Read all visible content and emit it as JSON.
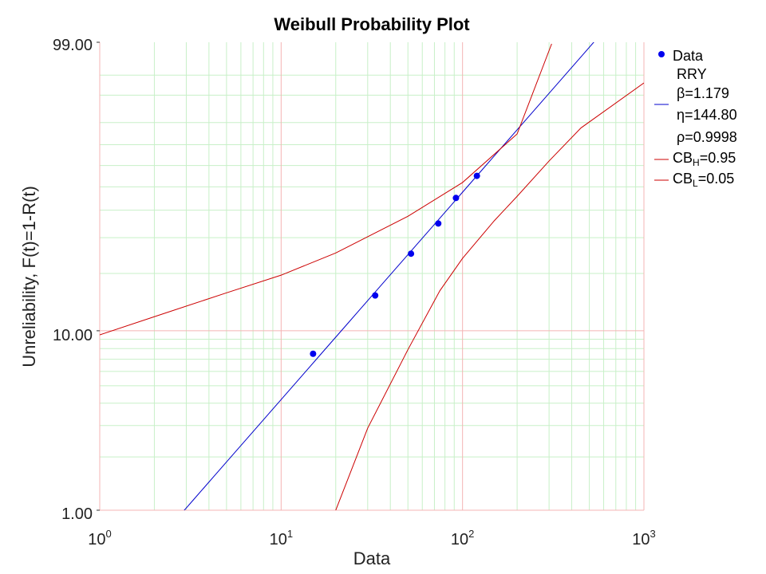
{
  "chart_data": {
    "type": "scatter",
    "title": "Weibull Probability Plot",
    "xlabel": "Data",
    "ylabel": "Unreliability, F(t)=1-R(t)",
    "x_scale": "log",
    "y_scale": "weibull",
    "xlim": [
      1,
      1000
    ],
    "ylim": [
      1,
      99
    ],
    "x_ticks": [
      {
        "base": "10",
        "exp": "0"
      },
      {
        "base": "10",
        "exp": "1"
      },
      {
        "base": "10",
        "exp": "2"
      },
      {
        "base": "10",
        "exp": "3"
      }
    ],
    "y_tick_labels": [
      "99.00",
      "10.00",
      "1.00"
    ],
    "grid": true,
    "legend_position": "right",
    "series": [
      {
        "name": "Data",
        "kind": "points",
        "color": "#0000ee",
        "x": [
          15.0,
          33.0,
          52.0,
          73.5,
          92.0,
          120.0
        ],
        "y": [
          7.5,
          15.4,
          25.1,
          34.9,
          45.1,
          55.1
        ]
      },
      {
        "name": "Fit",
        "kind": "line",
        "color": "#0000cc",
        "beta": 1.179,
        "eta": 144.8,
        "x": [
          2.9,
          540
        ]
      },
      {
        "name": "CB_H",
        "kind": "line",
        "color": "#cc0000",
        "x": [
          1,
          2,
          5,
          10,
          20,
          50,
          100,
          200,
          310
        ],
        "y": [
          9.5,
          11.9,
          15.9,
          19.6,
          25.3,
          37.6,
          52.0,
          75.0,
          98.9
        ]
      },
      {
        "name": "CB_L",
        "kind": "line",
        "color": "#cc0000",
        "x": [
          20,
          30,
          50,
          75,
          100,
          150,
          200,
          300,
          450,
          1000
        ],
        "y": [
          1.0,
          2.9,
          7.9,
          16.3,
          23.8,
          36.0,
          45.8,
          62.2,
          77.7,
          93.3
        ]
      }
    ],
    "legend": {
      "data_label": "Data",
      "fit_label": "RRY",
      "beta_text": "β=1.179",
      "eta_text": "η=144.80",
      "rho_text": "ρ=0.9998",
      "cbh_prefix": "CB",
      "cbh_sub": "H",
      "cbh_value": "=0.95",
      "cbl_prefix": "CB",
      "cbl_sub": "L",
      "cbl_value": "=0.05"
    },
    "colors": {
      "minor_grid": "#c8f0c8",
      "major_grid": "#f4b4b4",
      "fit_line": "#0000cc",
      "confidence_bounds": "#cc0000",
      "points": "#0000ee"
    }
  }
}
